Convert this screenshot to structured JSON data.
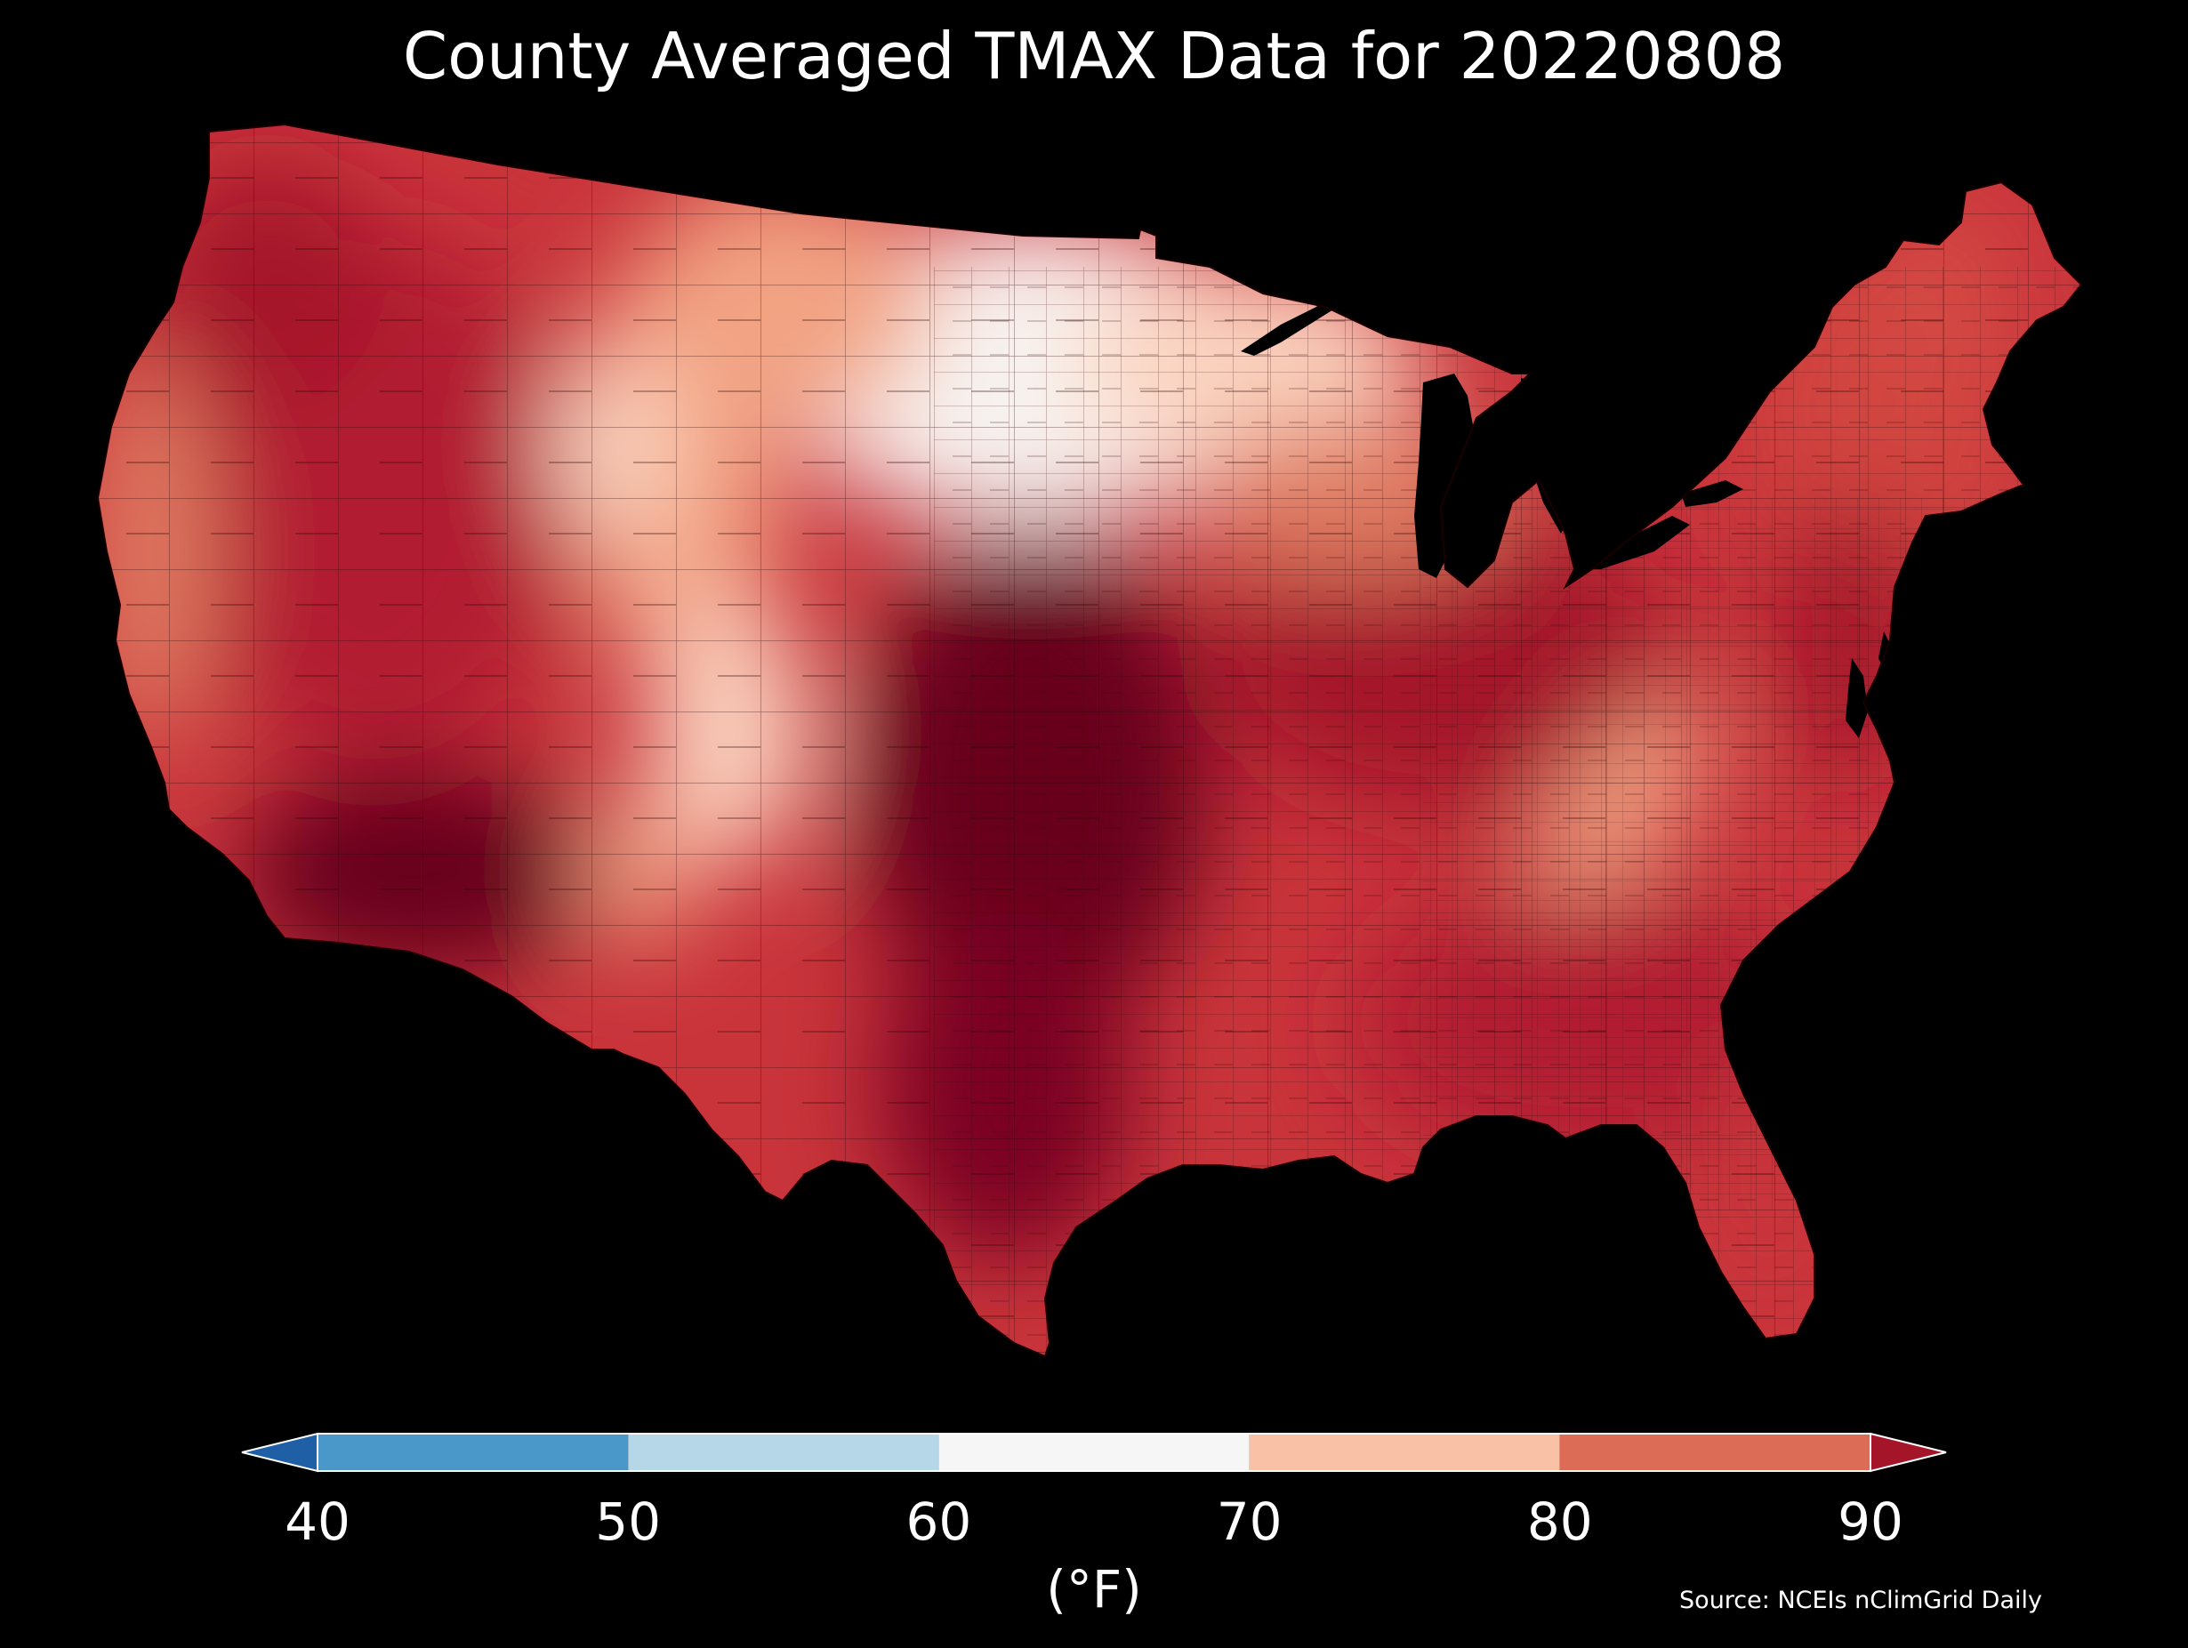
{
  "title": "County Averaged TMAX Data for 20220808",
  "source": "Source: NCEIs nClimGrid Daily",
  "colorbar": {
    "label": "(°F)",
    "ticks": [
      "40",
      "50",
      "60",
      "70",
      "80",
      "90"
    ],
    "bins": [
      {
        "range": [
          40,
          50
        ],
        "color": "#4a98c9"
      },
      {
        "range": [
          50,
          60
        ],
        "color": "#b6d7e8"
      },
      {
        "range": [
          60,
          70
        ],
        "color": "#f6f6f6"
      },
      {
        "range": [
          70,
          80
        ],
        "color": "#f9c1a5"
      },
      {
        "range": [
          80,
          90
        ],
        "color": "#dc6c55"
      }
    ],
    "under_color": "#1f5fa5",
    "over_color": "#a5152a",
    "extend": "both"
  },
  "map_colors": {
    "background": "#000000",
    "hottest": "#67001f",
    "hot": "#a5152a",
    "warm": "#c9343b",
    "mild_warm": "#dc6c55",
    "mild": "#f2a382",
    "cool": "#fbd4c0",
    "coolest": "#f7f4f2",
    "water": "#000000"
  }
}
